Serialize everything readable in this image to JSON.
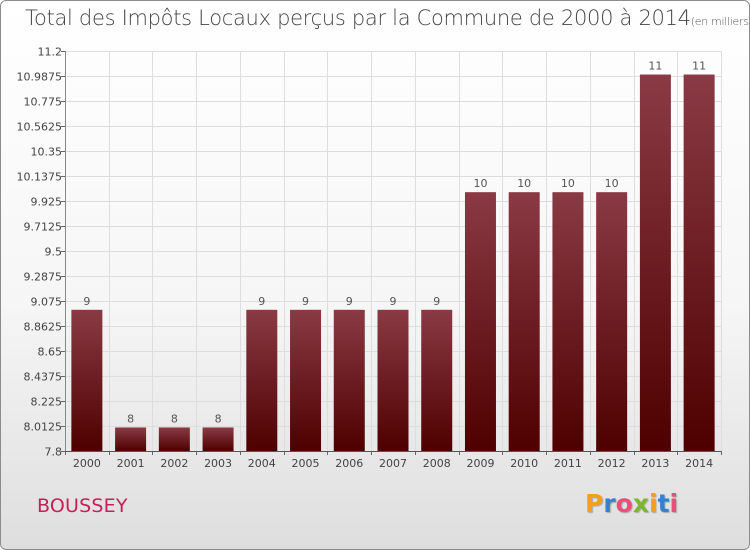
{
  "header": {
    "title": "Total des Impôts Locaux perçus par la Commune de 2000 à 2014",
    "unit": "(en milliers d'€)"
  },
  "footer": {
    "commune": "BOUSSEY",
    "logo_letters": [
      "P",
      "r",
      "o",
      "x",
      "i",
      "t",
      "i"
    ],
    "logo_colors": [
      "#f0a01e",
      "#3a7ecf",
      "#e6507a",
      "#7ab82a",
      "#f0a01e",
      "#3a7ecf",
      "#e6507a"
    ]
  },
  "chart_data": {
    "type": "bar",
    "title": "Total des Impôts Locaux perçus par la Commune de 2000 à 2014",
    "xlabel": "",
    "ylabel": "",
    "categories": [
      "2000",
      "2001",
      "2002",
      "2003",
      "2004",
      "2005",
      "2006",
      "2007",
      "2008",
      "2009",
      "2010",
      "2011",
      "2012",
      "2013",
      "2014"
    ],
    "values": [
      9.0,
      8.0,
      8.0,
      8.0,
      9.0,
      9.0,
      9.0,
      9.0,
      9.0,
      10.0,
      10.0,
      10.0,
      10.0,
      11.0,
      11.0
    ],
    "data_labels": [
      "9",
      "8",
      "8",
      "8",
      "9",
      "9",
      "9",
      "9",
      "9",
      "10",
      "10",
      "10",
      "10",
      "11",
      "11"
    ],
    "ylim": [
      7.8,
      11.2
    ],
    "yticks": [
      7.8,
      8.0125,
      8.225,
      8.4375,
      8.65,
      8.8625,
      9.075,
      9.2875,
      9.5,
      9.7125,
      9.925,
      10.1375,
      10.35,
      10.5625,
      10.775,
      10.9875,
      11.2
    ],
    "ytick_labels": [
      "7.8",
      "8.0125",
      "8.225",
      "8.4375",
      "8.65",
      "8.8625",
      "9.075",
      "9.2875",
      "9.5",
      "9.7125",
      "9.925",
      "10.1375",
      "10.35",
      "10.5625",
      "10.775",
      "10.9875",
      "11.2"
    ],
    "grid": true,
    "bar_color_top": "#8a3a44",
    "bar_color_bottom": "#4e0000",
    "grid_color": "#dddddd"
  }
}
